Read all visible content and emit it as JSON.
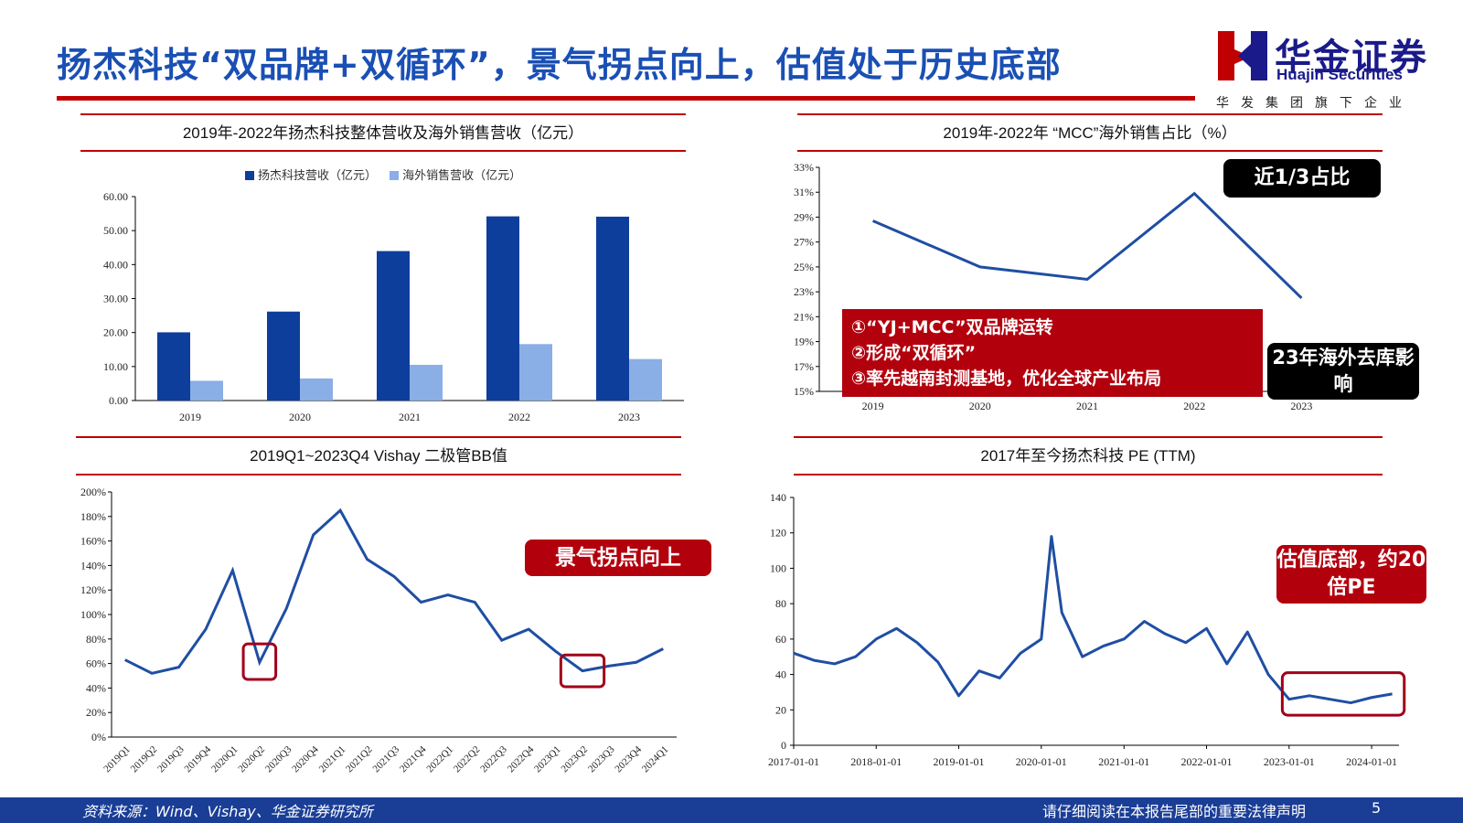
{
  "header": {
    "title": "扬杰科技“双品牌+双循环”，景气拐点向上，估值处于历史底部"
  },
  "logo": {
    "name_cn": "华金证券",
    "name_en": "Huajin Securities",
    "subtitle": "华发集团旗下企业"
  },
  "colors": {
    "accent_red": "#c00000",
    "brand_blue": "#1a4fb4",
    "dark_blue": "#0d3e9c",
    "light_blue": "#8aaee6",
    "line_blue": "#1f4ea3",
    "callout_red": "#b3000d"
  },
  "panels": {
    "revenue": {
      "title": "2019年-2022年扬杰科技整体营收及海外销售营收（亿元）"
    },
    "overseas_share": {
      "title": "2019年-2022年 “MCC”海外销售占比（%）",
      "callout_top": "近1/3占比",
      "callout_bottom": "23年海外去库影响",
      "bullets": [
        "①“YJ+MCC”双品牌运转",
        "②形成“双循环”",
        "③率先越南封测基地，优化全球产业布局"
      ]
    },
    "bb": {
      "title": "2019Q1~2023Q4 Vishay 二极管BB值",
      "callout": "景气拐点向上"
    },
    "pe": {
      "title": "2017年至今扬杰科技 PE (TTM)",
      "callout": "估值底部，约20倍PE"
    }
  },
  "footer": {
    "source": "资料来源：Wind、Vishay、华金证券研究所",
    "legal": "请仔细阅读在本报告尾部的重要法律声明",
    "page": "5"
  },
  "chart_data": [
    {
      "type": "bar",
      "title": "2019年-2022年扬杰科技整体营收及海外销售营收（亿元）",
      "categories": [
        "2019",
        "2020",
        "2021",
        "2022",
        "2023"
      ],
      "series": [
        {
          "name": "扬杰科技营收（亿元）",
          "values": [
            20.07,
            26.17,
            43.97,
            54.19,
            54.1
          ]
        },
        {
          "name": "海外销售营收（亿元）",
          "values": [
            5.8,
            6.5,
            10.5,
            16.6,
            12.2
          ]
        }
      ],
      "yticks": [
        "0.00",
        "10.00",
        "20.00",
        "30.00",
        "40.00",
        "50.00",
        "60.00"
      ],
      "ylim": [
        0,
        60
      ],
      "legend": "top"
    },
    {
      "type": "line",
      "title": "2019年-2022年 “MCC”海外销售占比（%）",
      "categories": [
        "2019",
        "2020",
        "2021",
        "2022",
        "2023"
      ],
      "values": [
        28.7,
        25.0,
        24.0,
        30.9,
        22.5
      ],
      "yticks": [
        "15%",
        "17%",
        "19%",
        "21%",
        "23%",
        "25%",
        "27%",
        "29%",
        "31%",
        "33%"
      ],
      "ylim": [
        15,
        33
      ]
    },
    {
      "type": "line",
      "title": "2019Q1~2023Q4 Vishay 二极管BB值",
      "categories": [
        "2019Q1",
        "2019Q2",
        "2019Q3",
        "2019Q4",
        "2020Q1",
        "2020Q2",
        "2020Q3",
        "2020Q4",
        "2021Q1",
        "2021Q2",
        "2021Q3",
        "2021Q4",
        "2022Q1",
        "2022Q2",
        "2022Q3",
        "2022Q4",
        "2023Q1",
        "2023Q2",
        "2023Q3",
        "2023Q4",
        "2024Q1"
      ],
      "values": [
        63,
        52,
        57,
        88,
        136,
        61,
        105,
        165,
        185,
        145,
        131,
        110,
        116,
        110,
        79,
        88,
        70,
        54,
        58,
        61,
        72
      ],
      "yticks": [
        "0%",
        "20%",
        "40%",
        "60%",
        "80%",
        "100%",
        "120%",
        "140%",
        "160%",
        "180%",
        "200%"
      ],
      "ylim": [
        0,
        200
      ]
    },
    {
      "type": "line",
      "title": "2017年至今扬杰科技 PE (TTM)",
      "x": [
        "2017-01-01",
        "2017-04-01",
        "2017-07-01",
        "2017-10-01",
        "2018-01-01",
        "2018-04-01",
        "2018-07-01",
        "2018-10-01",
        "2019-01-01",
        "2019-04-01",
        "2019-07-01",
        "2019-10-01",
        "2020-01-01",
        "2020-02-15",
        "2020-04-01",
        "2020-07-01",
        "2020-10-01",
        "2021-01-01",
        "2021-04-01",
        "2021-07-01",
        "2021-10-01",
        "2022-01-01",
        "2022-04-01",
        "2022-07-01",
        "2022-10-01",
        "2023-01-01",
        "2023-04-01",
        "2023-07-01",
        "2023-10-01",
        "2024-01-01",
        "2024-04-01"
      ],
      "values": [
        52,
        48,
        46,
        50,
        60,
        66,
        58,
        47,
        28,
        42,
        38,
        52,
        60,
        118,
        75,
        50,
        56,
        60,
        70,
        63,
        58,
        66,
        46,
        64,
        40,
        26,
        28,
        26,
        24,
        27,
        29
      ],
      "xticks": [
        "2017-01-01",
        "2018-01-01",
        "2019-01-01",
        "2020-01-01",
        "2021-01-01",
        "2022-01-01",
        "2023-01-01",
        "2024-01-01"
      ],
      "yticks": [
        "0",
        "20",
        "40",
        "60",
        "80",
        "100",
        "120",
        "140"
      ],
      "ylim": [
        0,
        140
      ]
    }
  ]
}
